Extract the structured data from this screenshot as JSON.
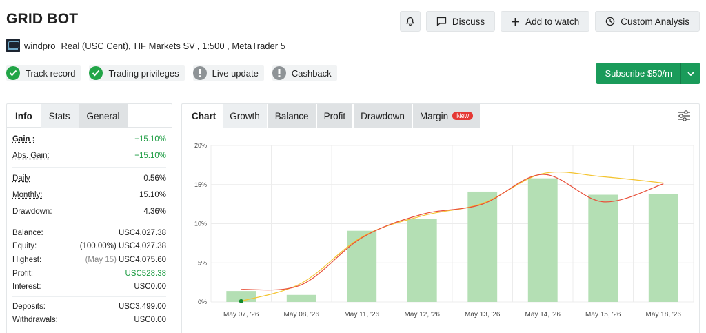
{
  "header": {
    "title": "GRID BOT",
    "discuss_label": "Discuss",
    "add_watch_label": "Add to watch",
    "custom_analysis_label": "Custom Analysis"
  },
  "account": {
    "owner": "windpro",
    "type": "Real (USC Cent),",
    "broker": "HF Markets SV",
    "details": ", 1:500 , MetaTrader 5"
  },
  "badges": [
    {
      "label": "Track record",
      "status": "ok"
    },
    {
      "label": "Trading privileges",
      "status": "ok"
    },
    {
      "label": "Live update",
      "status": "na"
    },
    {
      "label": "Cashback",
      "status": "na"
    }
  ],
  "subscribe": {
    "label": "Subscribe $50/m"
  },
  "left_tabs": [
    "Info",
    "Stats",
    "General"
  ],
  "stats": {
    "gain": {
      "k": "Gain :",
      "v": "+15.10%"
    },
    "abs_gain": {
      "k": "Abs. Gain:",
      "v": "+15.10%"
    },
    "daily": {
      "k": "Daily",
      "v": "0.56%"
    },
    "monthly": {
      "k": "Monthly:",
      "v": "15.10%"
    },
    "drawdown": {
      "k": "Drawdown:",
      "v": "4.36%"
    },
    "balance": {
      "k": "Balance:",
      "v": "USC4,027.38"
    },
    "equity": {
      "k": "Equity:",
      "pre": "(100.00%)",
      "v": "USC4,027.38"
    },
    "highest": {
      "k": "Highest:",
      "pre": "(May 15)",
      "v": "USC4,075.60"
    },
    "profit": {
      "k": "Profit:",
      "v": "USC528.38"
    },
    "interest": {
      "k": "Interest:",
      "v": "USC0.00"
    },
    "deposits": {
      "k": "Deposits:",
      "v": "USC3,499.00"
    },
    "withdrawals": {
      "k": "Withdrawals:",
      "v": "USC0.00"
    }
  },
  "chart_tabs": {
    "chart": "Chart",
    "growth": "Growth",
    "balance": "Balance",
    "profit": "Profit",
    "drawdown": "Drawdown",
    "margin": "Margin",
    "new": "New"
  },
  "colors": {
    "accent_green": "#1a9b5a",
    "bar": "#b4dfb4",
    "line_smooth": "#e8503a",
    "line_trend": "#f4c430",
    "point": "#138a2a"
  },
  "chart_data": {
    "type": "bar",
    "categories": [
      "May 07, '26",
      "May 08, '26",
      "May 11, '26",
      "May 12, '26",
      "May 13, '26",
      "May 14, '26",
      "May 15, '26",
      "May 18, '26"
    ],
    "y_ticks": [
      "0%",
      "5%",
      "10%",
      "15%",
      "20%"
    ],
    "ylim": [
      0,
      20
    ],
    "grid": true,
    "series": [
      {
        "type": "bar",
        "values": [
          1.4,
          0.9,
          9.1,
          10.6,
          14.1,
          15.8,
          13.7,
          13.8
        ]
      },
      {
        "type": "line",
        "values": [
          1.6,
          2.2,
          8.2,
          11.2,
          12.5,
          16.3,
          12.8,
          15.1
        ]
      },
      {
        "type": "line",
        "values": [
          0.1,
          2.4,
          8.3,
          11.0,
          12.6,
          16.4,
          16.0,
          15.2
        ]
      }
    ]
  }
}
